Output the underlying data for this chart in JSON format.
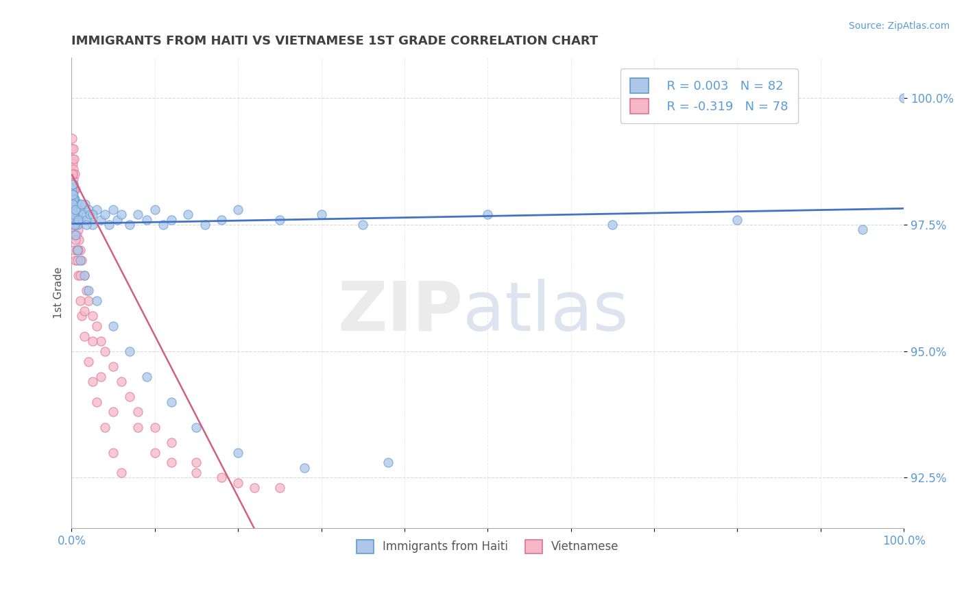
{
  "title": "IMMIGRANTS FROM HAITI VS VIETNAMESE 1ST GRADE CORRELATION CHART",
  "source_text": "Source: ZipAtlas.com",
  "legend_label1": "Immigrants from Haiti",
  "legend_label2": "Vietnamese",
  "legend_R1": "R = 0.003",
  "legend_N1": "N = 82",
  "legend_R2": "R = -0.319",
  "legend_N2": "N = 78",
  "color_haiti_fill": "#aec6e8",
  "color_haiti_edge": "#5b9bd5",
  "color_viet_fill": "#f5b8c8",
  "color_viet_edge": "#e07090",
  "color_line_haiti": "#4472c4",
  "color_line_viet": "#d06080",
  "color_line_viet_dashed": "#e8a0b8",
  "title_color": "#404040",
  "axis_color": "#5b9bd5",
  "grid_color": "#d0d0d0",
  "background_color": "#ffffff",
  "scatter_haiti_x": [
    0.05,
    0.08,
    0.12,
    0.15,
    0.18,
    0.2,
    0.22,
    0.25,
    0.28,
    0.3,
    0.35,
    0.4,
    0.45,
    0.5,
    0.55,
    0.6,
    0.65,
    0.7,
    0.75,
    0.8,
    0.9,
    1.0,
    1.1,
    1.2,
    1.4,
    1.6,
    1.8,
    2.0,
    2.2,
    2.5,
    3.0,
    3.5,
    4.0,
    4.5,
    5.0,
    5.5,
    6.0,
    7.0,
    8.0,
    9.0,
    10.0,
    11.0,
    12.0,
    14.0,
    16.0,
    18.0,
    20.0,
    25.0,
    30.0,
    35.0,
    0.1,
    0.2,
    0.3,
    0.5,
    0.7,
    1.0,
    1.5,
    2.0,
    3.0,
    5.0,
    7.0,
    9.0,
    12.0,
    15.0,
    20.0,
    28.0,
    38.0,
    50.0,
    65.0,
    80.0,
    95.0,
    100.0,
    0.05,
    0.1,
    0.15,
    0.25,
    0.35,
    0.5,
    0.8,
    1.2,
    1.8,
    2.5
  ],
  "scatter_haiti_y": [
    97.9,
    98.2,
    98.0,
    97.8,
    98.1,
    97.7,
    98.3,
    97.6,
    98.0,
    97.9,
    97.8,
    98.0,
    97.7,
    97.9,
    97.8,
    97.6,
    97.9,
    97.8,
    97.5,
    97.7,
    97.8,
    97.9,
    97.6,
    97.8,
    97.7,
    97.9,
    97.6,
    97.8,
    97.7,
    97.5,
    97.8,
    97.6,
    97.7,
    97.5,
    97.8,
    97.6,
    97.7,
    97.5,
    97.7,
    97.6,
    97.8,
    97.5,
    97.6,
    97.7,
    97.5,
    97.6,
    97.8,
    97.6,
    97.7,
    97.5,
    98.3,
    98.0,
    97.6,
    97.3,
    97.0,
    96.8,
    96.5,
    96.2,
    96.0,
    95.5,
    95.0,
    94.5,
    94.0,
    93.5,
    93.0,
    92.7,
    92.8,
    97.7,
    97.5,
    97.6,
    97.4,
    100.0,
    97.8,
    97.9,
    98.1,
    97.7,
    97.5,
    97.8,
    97.6,
    97.9,
    97.5,
    97.7
  ],
  "scatter_viet_x": [
    0.05,
    0.08,
    0.1,
    0.12,
    0.15,
    0.18,
    0.2,
    0.22,
    0.25,
    0.28,
    0.3,
    0.35,
    0.38,
    0.4,
    0.45,
    0.5,
    0.55,
    0.6,
    0.65,
    0.7,
    0.8,
    0.9,
    1.0,
    1.2,
    1.5,
    1.8,
    2.0,
    2.5,
    3.0,
    3.5,
    4.0,
    5.0,
    6.0,
    7.0,
    8.0,
    10.0,
    12.0,
    15.0,
    18.0,
    22.0,
    0.05,
    0.1,
    0.15,
    0.2,
    0.25,
    0.3,
    0.35,
    0.4,
    0.45,
    0.5,
    0.6,
    0.7,
    0.8,
    1.0,
    1.2,
    1.5,
    2.0,
    2.5,
    3.0,
    4.0,
    5.0,
    6.0,
    8.0,
    10.0,
    12.0,
    15.0,
    20.0,
    25.0,
    0.1,
    0.2,
    0.3,
    0.5,
    0.8,
    1.0,
    1.5,
    2.5,
    3.5,
    5.0
  ],
  "scatter_viet_y": [
    99.2,
    99.0,
    98.8,
    98.5,
    98.7,
    98.3,
    99.0,
    98.6,
    98.4,
    98.8,
    98.2,
    98.5,
    98.0,
    97.8,
    98.2,
    97.5,
    97.8,
    97.5,
    97.3,
    97.6,
    97.4,
    97.2,
    97.0,
    96.8,
    96.5,
    96.2,
    96.0,
    95.7,
    95.5,
    95.2,
    95.0,
    94.7,
    94.4,
    94.1,
    93.8,
    93.5,
    93.2,
    92.8,
    92.5,
    92.3,
    98.0,
    97.7,
    97.5,
    97.3,
    97.6,
    97.0,
    97.3,
    97.8,
    96.8,
    97.2,
    97.0,
    96.8,
    96.5,
    96.0,
    95.7,
    95.3,
    94.8,
    94.4,
    94.0,
    93.5,
    93.0,
    92.6,
    93.5,
    93.0,
    92.8,
    92.6,
    92.4,
    92.3,
    98.5,
    98.0,
    98.2,
    97.5,
    97.0,
    96.5,
    95.8,
    95.2,
    94.5,
    93.8
  ],
  "xlim": [
    0,
    100
  ],
  "ylim": [
    91.5,
    100.8
  ],
  "yticks": [
    92.5,
    95.0,
    97.5,
    100.0
  ],
  "haiti_trend_slope": 0.003,
  "haiti_trend_intercept": 97.52,
  "viet_trend_slope": -0.319,
  "viet_trend_intercept": 98.5,
  "viet_solid_x_end": 25.0
}
